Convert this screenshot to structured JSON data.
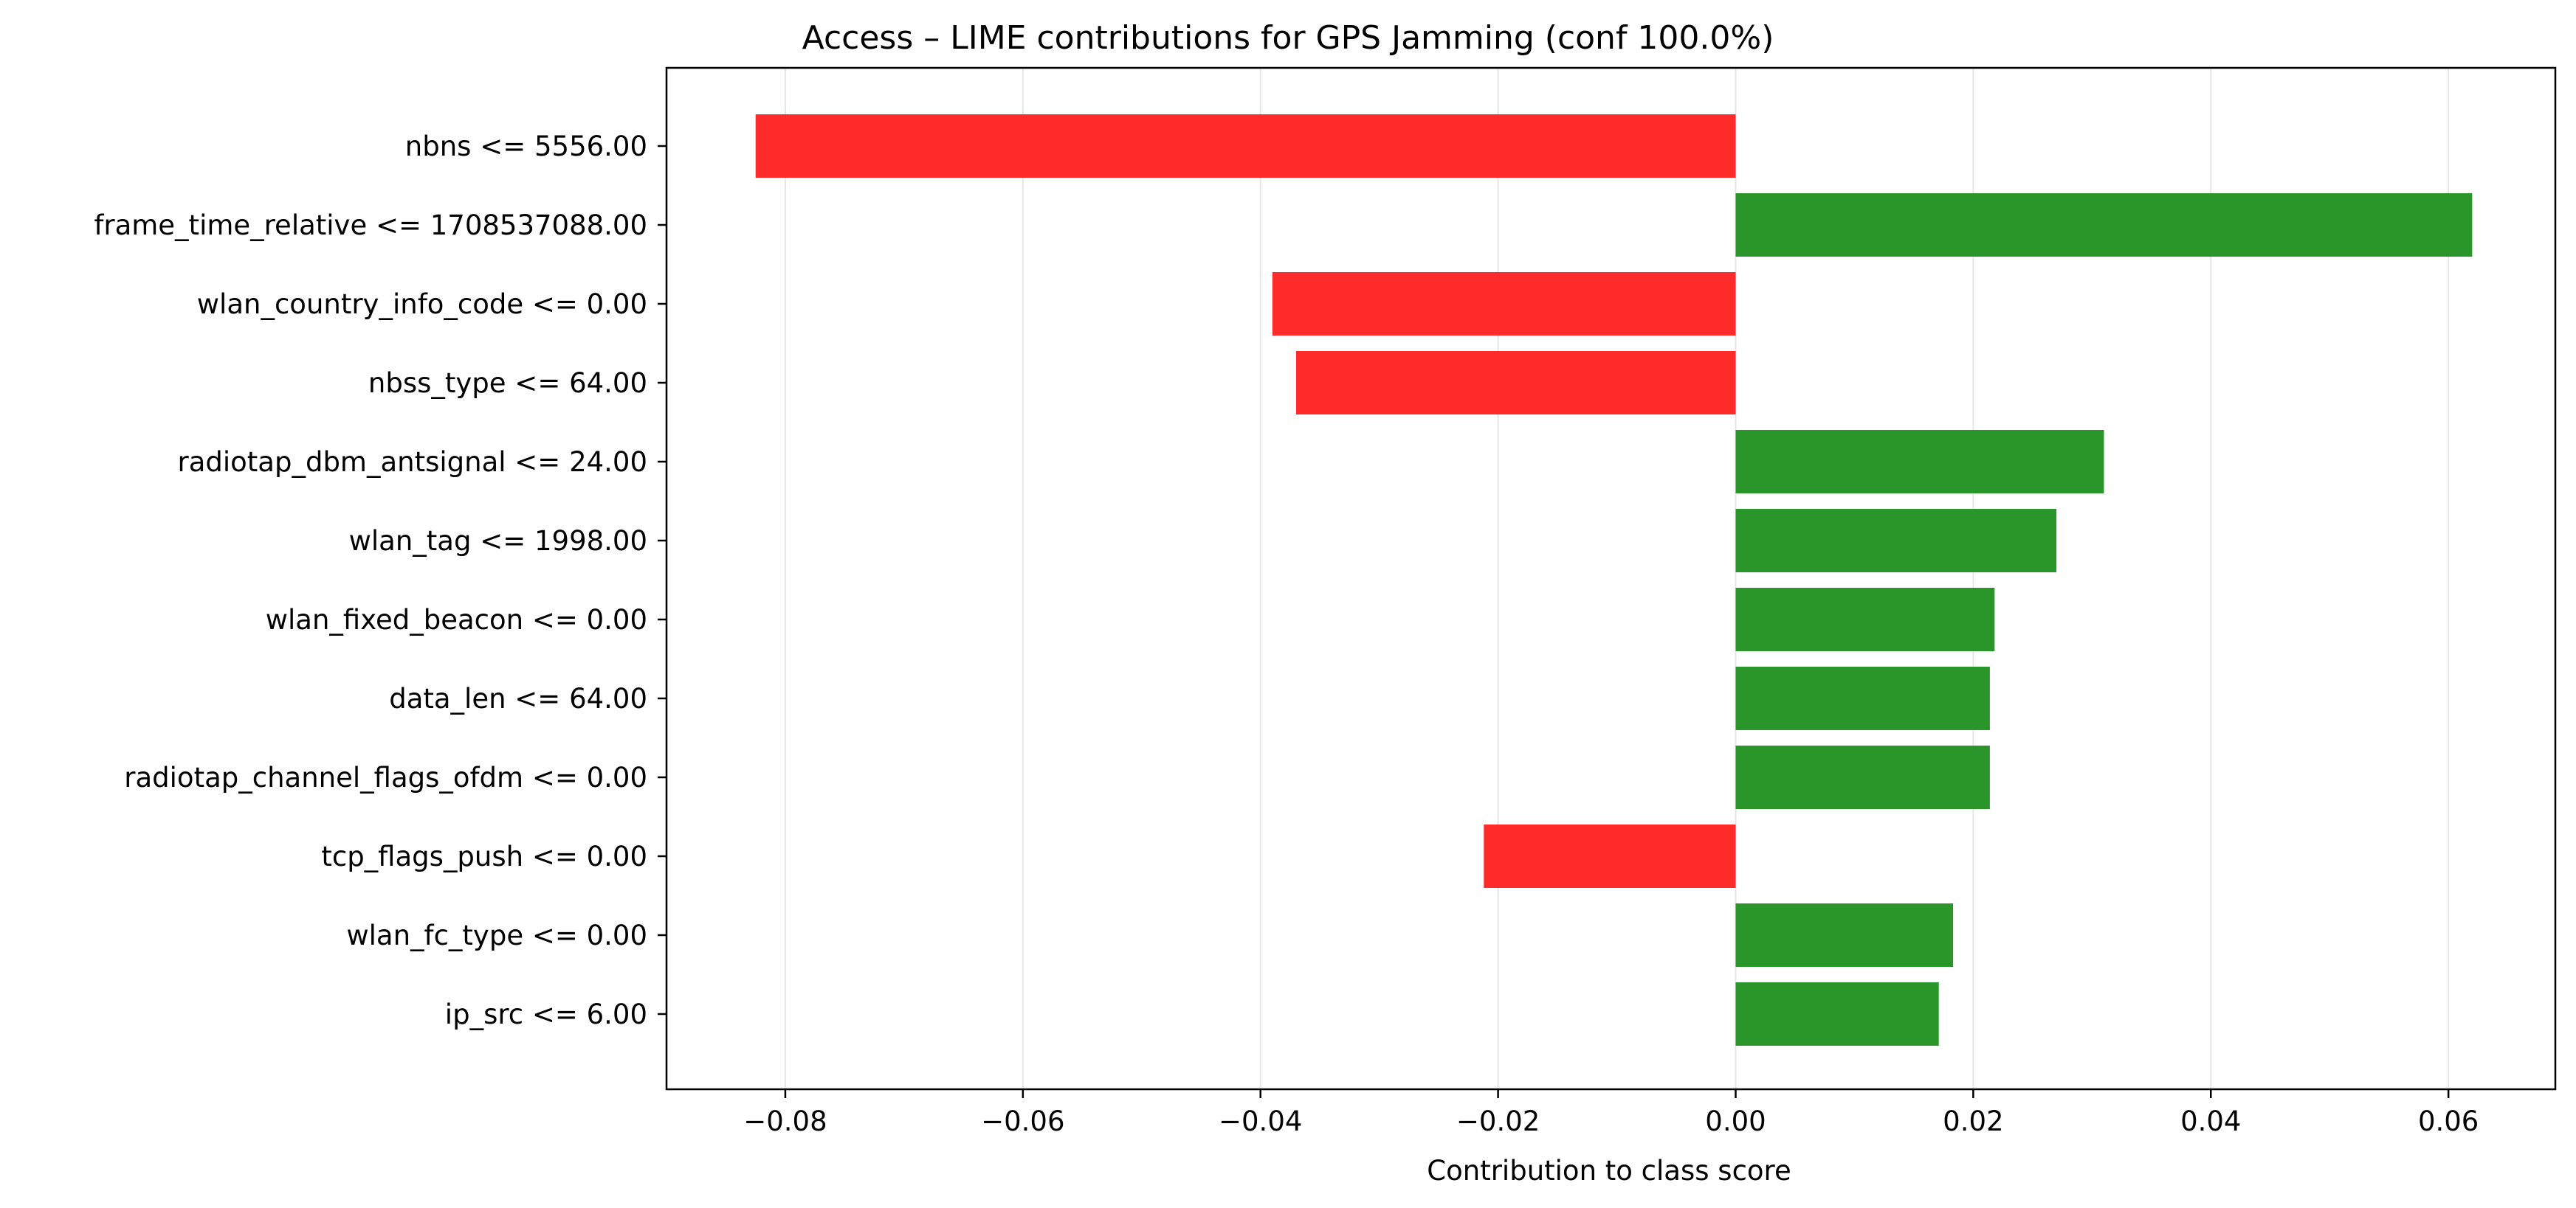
{
  "chart_data": {
    "type": "bar",
    "orientation": "horizontal",
    "title": "Access – LIME contributions for GPS Jamming (conf 100.0%)",
    "xlabel": "Contribution to class score",
    "ylabel": "",
    "xlim": [
      -0.09,
      0.069
    ],
    "grid": "vertical",
    "x_ticks": [
      -0.08,
      -0.06,
      -0.04,
      -0.02,
      0.0,
      0.02,
      0.04,
      0.06
    ],
    "x_tick_labels": [
      "−0.08",
      "−0.06",
      "−0.04",
      "−0.02",
      "0.00",
      "0.02",
      "0.04",
      "0.06"
    ],
    "positive_color": "#2a962a",
    "negative_color": "#ff2a2a",
    "categories": [
      "nbns <= 5556.00",
      "frame_time_relative <= 1708537088.00",
      "wlan_country_info_code <= 0.00",
      "nbss_type <= 64.00",
      "radiotap_dbm_antsignal <= 24.00",
      "wlan_tag <= 1998.00",
      "wlan_fixed_beacon <= 0.00",
      "data_len <= 64.00",
      "radiotap_channel_flags_ofdm <= 0.00",
      "tcp_flags_push <= 0.00",
      "wlan_fc_type <= 0.00",
      "ip_src <= 6.00"
    ],
    "values": [
      -0.0825,
      0.062,
      -0.039,
      -0.037,
      0.031,
      0.027,
      0.0218,
      0.0214,
      0.0214,
      -0.0212,
      0.0183,
      0.0171
    ]
  }
}
